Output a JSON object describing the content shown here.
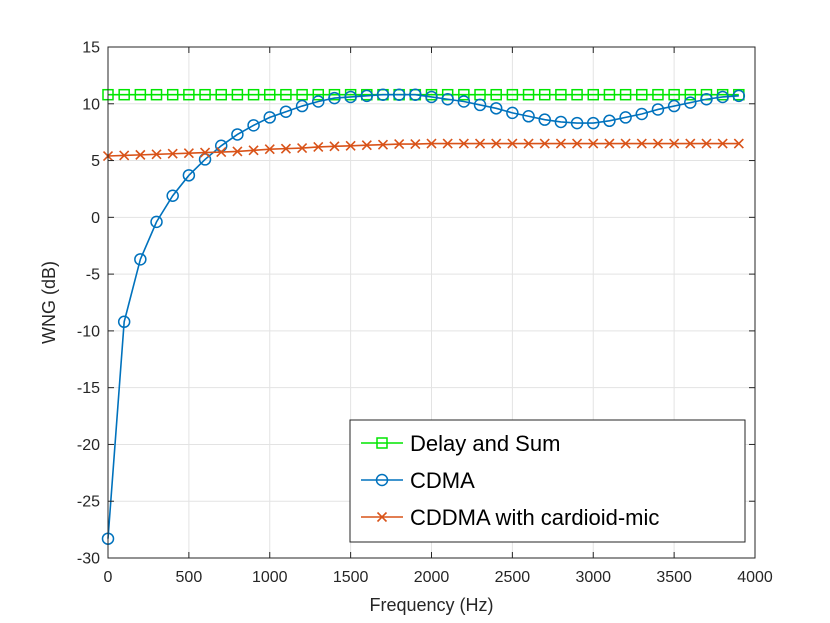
{
  "chart_data": {
    "type": "line",
    "title": "",
    "xlabel": "Frequency (Hz)",
    "ylabel": "WNG (dB)",
    "xlim": [
      0,
      4000
    ],
    "ylim": [
      -30,
      15
    ],
    "xticks": [
      0,
      500,
      1000,
      1500,
      2000,
      2500,
      3000,
      3500,
      4000
    ],
    "yticks": [
      -30,
      -25,
      -20,
      -15,
      -10,
      -5,
      0,
      5,
      10,
      15
    ],
    "xtick_labels": [
      "0",
      "500",
      "1000",
      "1500",
      "2000",
      "2500",
      "3000",
      "3500",
      "4000"
    ],
    "ytick_labels": [
      "-30",
      "-25",
      "-20",
      "-15",
      "-10",
      "-5",
      "0",
      "5",
      "10",
      "15"
    ],
    "grid": true,
    "legend_position": "bottom-right",
    "x": [
      0,
      100,
      200,
      300,
      400,
      500,
      600,
      700,
      800,
      900,
      1000,
      1100,
      1200,
      1300,
      1400,
      1500,
      1600,
      1700,
      1800,
      1900,
      2000,
      2100,
      2200,
      2300,
      2400,
      2500,
      2600,
      2700,
      2800,
      2900,
      3000,
      3100,
      3200,
      3300,
      3400,
      3500,
      3600,
      3700,
      3800,
      3900
    ],
    "series": [
      {
        "name": "Delay and Sum",
        "color": "#00e600",
        "marker": "square",
        "values": [
          10.8,
          10.8,
          10.8,
          10.8,
          10.8,
          10.8,
          10.8,
          10.8,
          10.8,
          10.8,
          10.8,
          10.8,
          10.8,
          10.8,
          10.8,
          10.8,
          10.8,
          10.8,
          10.8,
          10.8,
          10.8,
          10.8,
          10.8,
          10.8,
          10.8,
          10.8,
          10.8,
          10.8,
          10.8,
          10.8,
          10.8,
          10.8,
          10.8,
          10.8,
          10.8,
          10.8,
          10.8,
          10.8,
          10.8,
          10.8
        ]
      },
      {
        "name": "CDMA",
        "color": "#0072bd",
        "marker": "circle",
        "values": [
          -28.3,
          -9.2,
          -3.7,
          -0.4,
          1.9,
          3.7,
          5.1,
          6.3,
          7.3,
          8.1,
          8.8,
          9.3,
          9.8,
          10.2,
          10.5,
          10.6,
          10.7,
          10.8,
          10.8,
          10.8,
          10.6,
          10.4,
          10.2,
          9.9,
          9.6,
          9.2,
          8.9,
          8.6,
          8.4,
          8.3,
          8.3,
          8.5,
          8.8,
          9.1,
          9.5,
          9.8,
          10.1,
          10.4,
          10.6,
          10.7
        ]
      },
      {
        "name": "CDDMA with cardioid-mic",
        "color": "#d95319",
        "marker": "x",
        "values": [
          5.4,
          5.45,
          5.5,
          5.55,
          5.6,
          5.65,
          5.7,
          5.75,
          5.8,
          5.9,
          6.0,
          6.05,
          6.1,
          6.2,
          6.25,
          6.3,
          6.35,
          6.4,
          6.45,
          6.45,
          6.5,
          6.5,
          6.5,
          6.5,
          6.5,
          6.5,
          6.5,
          6.5,
          6.5,
          6.5,
          6.5,
          6.5,
          6.5,
          6.5,
          6.5,
          6.5,
          6.5,
          6.5,
          6.5,
          6.5
        ]
      }
    ]
  }
}
